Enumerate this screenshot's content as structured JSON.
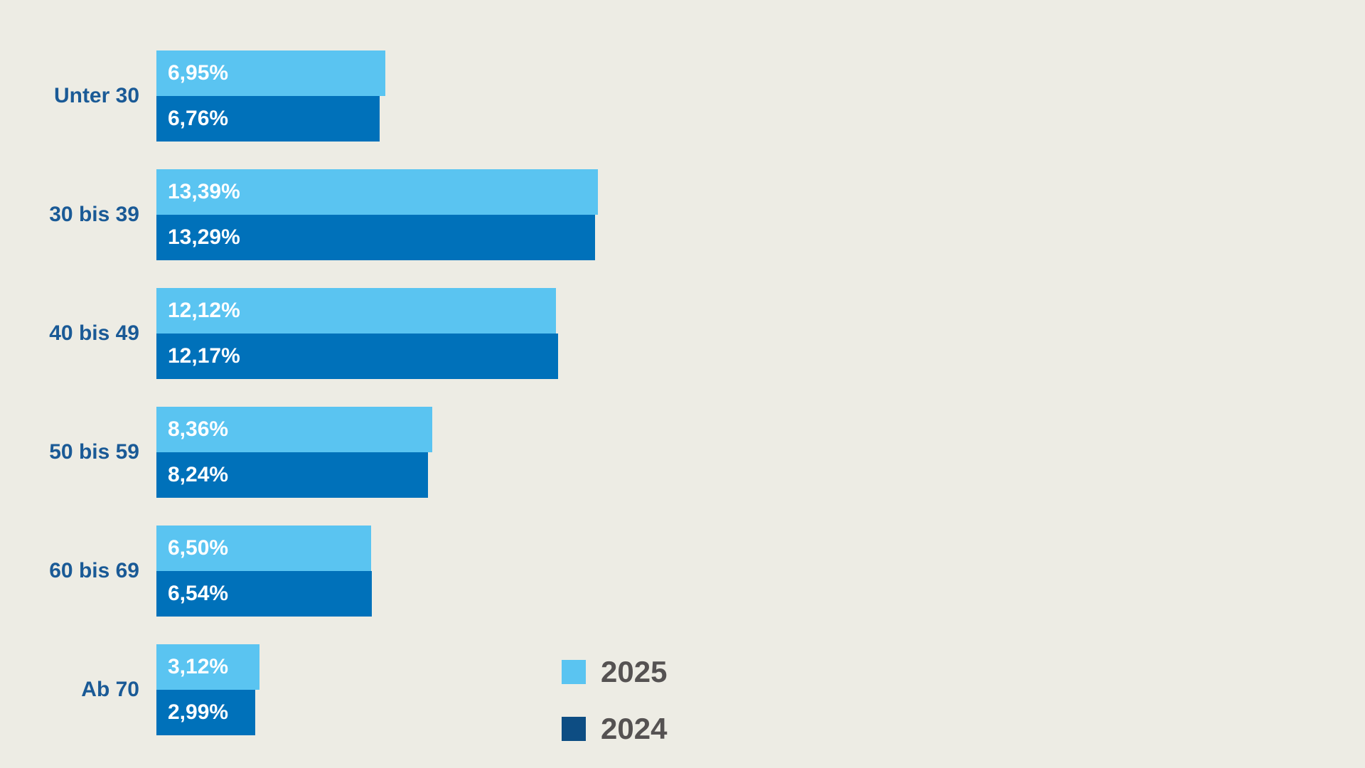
{
  "chart_data": {
    "type": "bar",
    "orientation": "horizontal",
    "title": "",
    "xlabel": "",
    "ylabel": "",
    "grid": false,
    "xlim": [
      0,
      14
    ],
    "legend_position": "bottom-center-left",
    "value_format": "german-decimal-percent",
    "categories": [
      "Unter 30",
      "30 bis 39",
      "40 bis 49",
      "50 bis 59",
      "60 bis 69",
      "Ab 70"
    ],
    "series": [
      {
        "name": "2025",
        "color": "#5AC4F1",
        "values": [
          6.95,
          13.39,
          12.12,
          8.36,
          6.5,
          3.12
        ],
        "labels": [
          "6,95%",
          "13,39%",
          "12,12%",
          "8,36%",
          "6,50%",
          "3,12%"
        ]
      },
      {
        "name": "2024",
        "color": "#0071BA",
        "values": [
          6.76,
          13.29,
          12.17,
          8.24,
          6.54,
          2.99
        ],
        "labels": [
          "6,76%",
          "13,29%",
          "12,17%",
          "8,24%",
          "6,54%",
          "2,99%"
        ]
      }
    ],
    "legend": [
      {
        "label": "2025",
        "swatch_color": "#5AC4F1"
      },
      {
        "label": "2024",
        "swatch_color": "#0D4D83"
      }
    ]
  },
  "colors": {
    "background": "#EDECE4",
    "category_label_text": "#1A5A96",
    "bar_value_text": "#FFFFFF",
    "legend_text": "#555252",
    "series_2025": "#5AC4F1",
    "series_2024": "#0071BA",
    "legend_swatch_2024": "#0D4D83"
  }
}
